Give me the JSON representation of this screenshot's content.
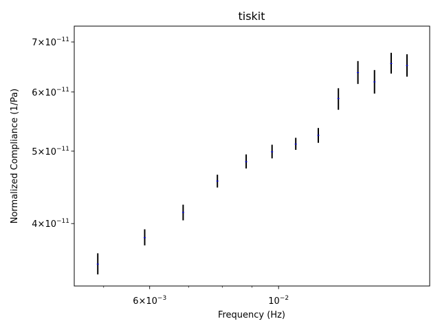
{
  "chart_data": {
    "type": "scatter",
    "title": "tiskit",
    "xlabel": "Frequency (Hz)",
    "ylabel": "Normalized Compliance (1/Pa)",
    "x_scale": "log",
    "y_scale": "log",
    "xlim": [
      0.00445,
      0.0182
    ],
    "ylim": [
      3.3e-11,
      7.35e-11
    ],
    "grid": false,
    "x_major_ticks": [
      {
        "value": 0.006,
        "base": "6×10",
        "exp": "−3"
      },
      {
        "value": 0.01,
        "base": "10",
        "exp": "−2"
      }
    ],
    "y_major_ticks": [
      {
        "value": 4e-11,
        "base": "4×10",
        "exp": "−11"
      },
      {
        "value": 5e-11,
        "base": "5×10",
        "exp": "−11"
      },
      {
        "value": 6e-11,
        "base": "6×10",
        "exp": "−11"
      },
      {
        "value": 7e-11,
        "base": "7×10",
        "exp": "−11"
      }
    ],
    "x_minor_ticks": [
      0.005,
      0.007,
      0.008,
      0.009
    ],
    "marker_color": "#0000ff",
    "errorbar_color": "#000000",
    "points": [
      {
        "x": 0.004885,
        "y": 3.53e-11,
        "ylo": 3.42e-11,
        "yhi": 3.65e-11
      },
      {
        "x": 0.005883,
        "y": 3.83e-11,
        "ylo": 3.74e-11,
        "yhi": 3.93e-11
      },
      {
        "x": 0.006851,
        "y": 4.14e-11,
        "ylo": 4.04e-11,
        "yhi": 4.24e-11
      },
      {
        "x": 0.007847,
        "y": 4.56e-11,
        "ylo": 4.47e-11,
        "yhi": 4.65e-11
      },
      {
        "x": 0.008795,
        "y": 4.84e-11,
        "ylo": 4.74e-11,
        "yhi": 4.95e-11
      },
      {
        "x": 0.009745,
        "y": 4.99e-11,
        "ylo": 4.89e-11,
        "yhi": 5.1e-11
      },
      {
        "x": 0.010705,
        "y": 5.11e-11,
        "ylo": 5.02e-11,
        "yhi": 5.21e-11
      },
      {
        "x": 0.011705,
        "y": 5.25e-11,
        "ylo": 5.13e-11,
        "yhi": 5.37e-11
      },
      {
        "x": 0.012675,
        "y": 5.88e-11,
        "ylo": 5.68e-11,
        "yhi": 6.07e-11
      },
      {
        "x": 0.013695,
        "y": 6.37e-11,
        "ylo": 6.15e-11,
        "yhi": 6.6e-11
      },
      {
        "x": 0.014625,
        "y": 6.19e-11,
        "ylo": 5.97e-11,
        "yhi": 6.42e-11
      },
      {
        "x": 0.015625,
        "y": 6.55e-11,
        "ylo": 6.35e-11,
        "yhi": 6.77e-11
      },
      {
        "x": 0.016635,
        "y": 6.51e-11,
        "ylo": 6.29e-11,
        "yhi": 6.74e-11
      }
    ]
  }
}
